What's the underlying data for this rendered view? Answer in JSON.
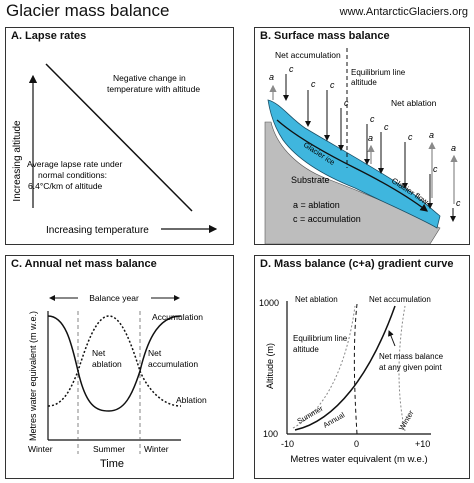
{
  "header": {
    "title": "Glacier mass balance",
    "url": "www.AntarcticGlaciers.org"
  },
  "panelA": {
    "title": "A. Lapse rates",
    "neg_line1": "Negative change in",
    "neg_line2": "temperature with altitude",
    "avg_line1": "Average lapse rate under",
    "avg_line2": "normal conditions:",
    "avg_line3": "6.4°C/km of altitude",
    "ylabel": "Increasing altitude",
    "xlabel": "Increasing temperature"
  },
  "panelB": {
    "title": "B. Surface mass balance",
    "net_accum": "Net accumulation",
    "eq_line1": "Equilibrium line",
    "eq_line2": "altitude",
    "net_ablation": "Net ablation",
    "glacier_ice": "Glacier ice",
    "substrate": "Substrate",
    "glacier_flow": "Glacier flow",
    "legend_a": "a = ablation",
    "legend_c": "c = accumulation",
    "a": "a",
    "c": "c"
  },
  "panelC": {
    "title": "C. Annual net mass balance",
    "balance_year": "Balance year",
    "accumulation": "Accumulation",
    "net_ablation_1": "Net",
    "net_ablation_2": "ablation",
    "net_accum_1": "Net",
    "net_accum_2": "accumulation",
    "ablation": "Ablation",
    "ylabel": "Metres water equivalent (m w.e.)",
    "winter_left": "Winter",
    "summer": "Summer",
    "winter_right": "Winter",
    "xlabel": "Time"
  },
  "panelD": {
    "title": "D. Mass balance (c+a) gradient curve",
    "y_top": "1000",
    "y_bottom": "100",
    "ylabel": "Altitude (m)",
    "net_ablation": "Net ablation",
    "net_accum": "Net accumulation",
    "eq_line1": "Equilibrium line",
    "eq_line2": "altitude",
    "nmb_line1": "Net mass balance",
    "nmb_line2": "at any given point",
    "summer": "Summer",
    "annual": "Annual",
    "winter": "Winter",
    "x_left": "-10",
    "x_mid": "0",
    "x_right": "+10",
    "xlabel": "Metres water equivalent (m w.e.)"
  },
  "colors": {
    "ice": "#3fb6de",
    "ice_dark": "#1a7aa6",
    "substrate": "#bdbdbd",
    "arrow_grey": "#8a8a8a"
  }
}
